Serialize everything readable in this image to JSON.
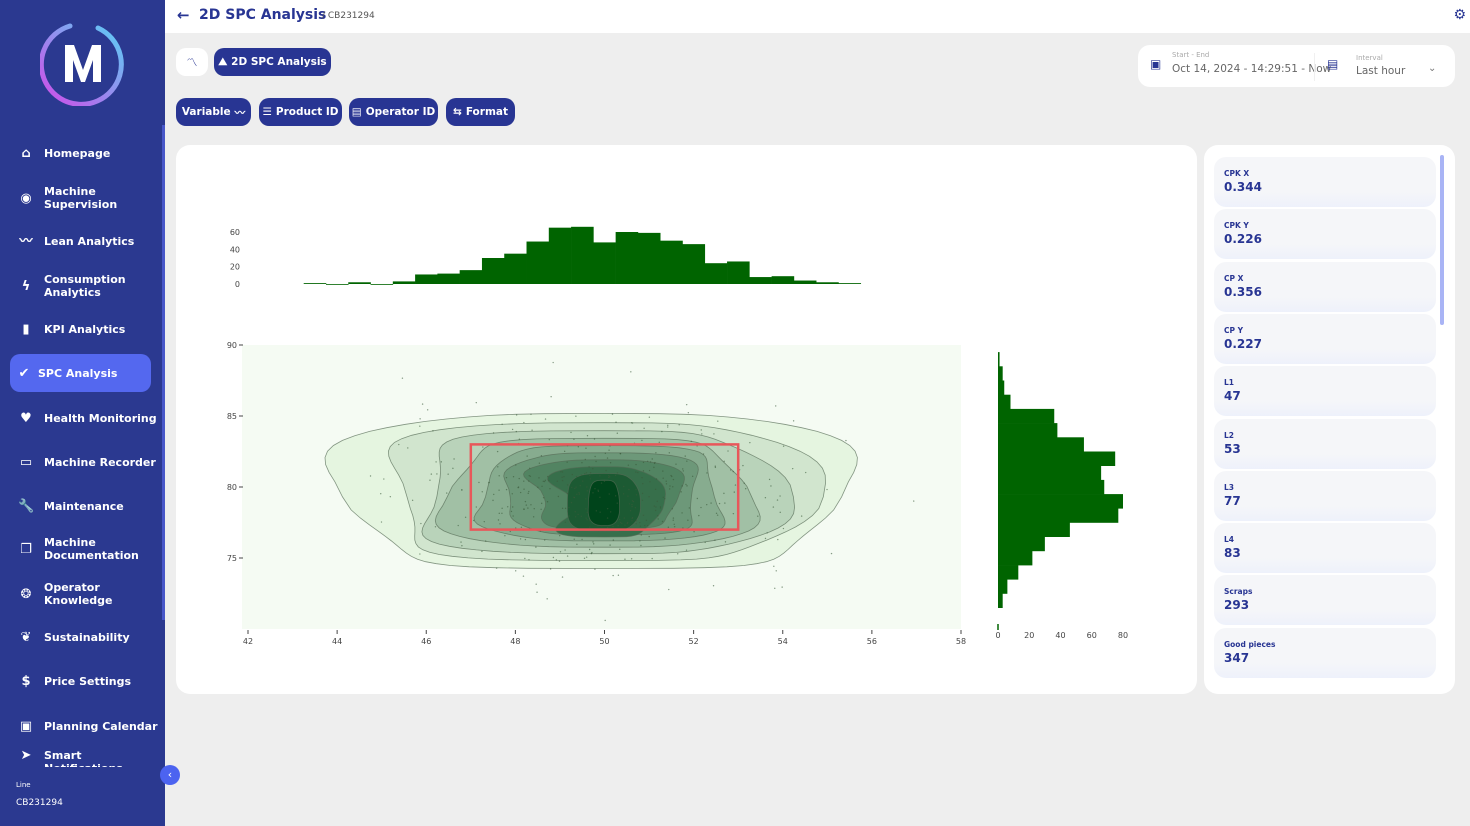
{
  "sidebar": {
    "logo_letter": "M",
    "items": [
      {
        "label": "Homepage",
        "icon": "home-icon",
        "glyph": "⌂"
      },
      {
        "label": "Machine Supervision",
        "icon": "eye-icon",
        "glyph": "◉"
      },
      {
        "label": "Lean Analytics",
        "icon": "trend-icon",
        "glyph": "〰"
      },
      {
        "label": "Consumption Analytics",
        "icon": "bolt-icon",
        "glyph": "ϟ"
      },
      {
        "label": "KPI Analytics",
        "icon": "bar-chart-icon",
        "glyph": "▮"
      },
      {
        "label": "SPC Analysis",
        "icon": "double-check-icon",
        "glyph": "✔",
        "active": true
      },
      {
        "label": "Health Monitoring",
        "icon": "heart-icon",
        "glyph": "♥"
      },
      {
        "label": "Machine Recorder",
        "icon": "recorder-icon",
        "glyph": "▭"
      },
      {
        "label": "Maintenance",
        "icon": "wrench-icon",
        "glyph": "🔧"
      },
      {
        "label": "Machine Documentation",
        "icon": "document-icon",
        "glyph": "❐"
      },
      {
        "label": "Operator Knowledge",
        "icon": "brain-icon",
        "glyph": "❂"
      },
      {
        "label": "Sustainability",
        "icon": "leaf-icon",
        "glyph": "❦"
      },
      {
        "label": "Price Settings",
        "icon": "dollar-icon",
        "glyph": "$"
      },
      {
        "label": "Planning Calendar",
        "icon": "calendar-icon",
        "glyph": "▣"
      },
      {
        "label": "Smart Notifications",
        "icon": "send-icon",
        "glyph": "➤"
      }
    ],
    "line_label": "Line",
    "line_value": "CB231294"
  },
  "header": {
    "title": "2D SPC Analysis",
    "subtitle": "/ CB231294"
  },
  "toolbar": {
    "view_button": "2D SPC Analysis",
    "variable": "Variable",
    "product_id": "Product ID",
    "operator_id": "Operator ID",
    "format": "Format"
  },
  "date_range": {
    "label": "Start - End",
    "value": "Oct 14, 2024 - 14:29:51 - Now"
  },
  "interval": {
    "label": "Interval",
    "value": "Last hour"
  },
  "kpis": [
    {
      "label": "CPK X",
      "value": "0.344"
    },
    {
      "label": "CPK Y",
      "value": "0.226"
    },
    {
      "label": "CP X",
      "value": "0.356"
    },
    {
      "label": "CP Y",
      "value": "0.227"
    },
    {
      "label": "L1",
      "value": "47"
    },
    {
      "label": "L2",
      "value": "53"
    },
    {
      "label": "L3",
      "value": "77"
    },
    {
      "label": "L4",
      "value": "83"
    },
    {
      "label": "Scraps",
      "value": "293"
    },
    {
      "label": "Good pieces",
      "value": "347"
    }
  ],
  "chart_data": {
    "type": "2d-density-contour with marginal histograms",
    "colors": {
      "histogram": "#006400",
      "spec_box": "#e8575a",
      "contour_low": "#e5f5e0",
      "contour_high": "#00441b"
    },
    "main": {
      "xlim": [
        42,
        58
      ],
      "ylim": [
        70,
        90
      ],
      "xticks": [
        42,
        44,
        46,
        48,
        50,
        52,
        54,
        56,
        58
      ],
      "yticks": [
        75,
        80,
        85,
        90
      ],
      "density_center": [
        50,
        79
      ],
      "spec_limits": {
        "x": [
          47,
          53
        ],
        "y": [
          77,
          83
        ]
      },
      "contour_levels": 10
    },
    "x_histogram": {
      "bin_start": 43.25,
      "bin_width": 0.5,
      "counts": [
        1,
        0,
        2,
        0,
        3,
        11,
        12,
        16,
        30,
        35,
        49,
        65,
        66,
        48,
        60,
        59,
        50,
        46,
        24,
        26,
        8,
        9,
        4,
        2,
        1
      ],
      "yticks": [
        0,
        20,
        40,
        60
      ]
    },
    "y_histogram": {
      "bin_top": 89.5,
      "bin_height": 1,
      "counts_top_down": [
        1,
        3,
        4,
        8,
        36,
        38,
        55,
        75,
        66,
        68,
        80,
        77,
        46,
        30,
        22,
        13,
        6,
        3
      ],
      "xticks": [
        0,
        20,
        40,
        60,
        80
      ]
    }
  }
}
